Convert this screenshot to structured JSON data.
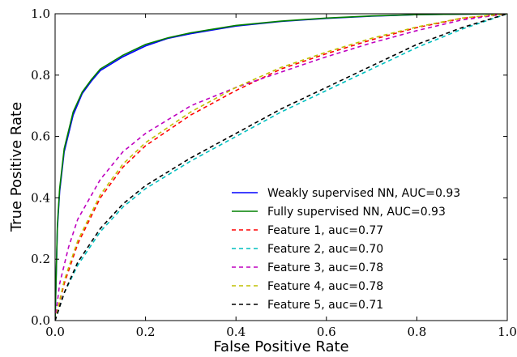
{
  "chart_data": {
    "type": "line",
    "title": "",
    "xlabel": "False Positive Rate",
    "ylabel": "True Positive Rate",
    "xlim": [
      0.0,
      1.0
    ],
    "ylim": [
      0.0,
      1.0
    ],
    "grid": false,
    "legend_position": "bottom-right",
    "x_ticks": [
      "0.0",
      "0.2",
      "0.4",
      "0.6",
      "0.8",
      "1.0"
    ],
    "y_ticks": [
      "0.0",
      "0.2",
      "0.4",
      "0.6",
      "0.8",
      "1.0"
    ],
    "series": [
      {
        "name": "Weakly supervised NN, AUC=0.93",
        "color": "#0000ff",
        "style": "solid",
        "x": [
          0,
          0.005,
          0.01,
          0.02,
          0.04,
          0.06,
          0.08,
          0.1,
          0.15,
          0.2,
          0.25,
          0.3,
          0.4,
          0.5,
          0.6,
          0.7,
          0.8,
          0.9,
          1.0
        ],
        "y": [
          0,
          0.3,
          0.42,
          0.55,
          0.67,
          0.74,
          0.78,
          0.815,
          0.86,
          0.895,
          0.92,
          0.935,
          0.96,
          0.975,
          0.985,
          0.992,
          0.997,
          0.999,
          1.0
        ]
      },
      {
        "name": "Fully supervised NN, AUC=0.93",
        "color": "#008000",
        "style": "solid",
        "x": [
          0,
          0.005,
          0.01,
          0.02,
          0.04,
          0.06,
          0.08,
          0.1,
          0.15,
          0.2,
          0.25,
          0.3,
          0.4,
          0.5,
          0.6,
          0.7,
          0.8,
          0.9,
          1.0
        ],
        "y": [
          0,
          0.31,
          0.43,
          0.56,
          0.68,
          0.745,
          0.785,
          0.82,
          0.865,
          0.9,
          0.922,
          0.938,
          0.962,
          0.976,
          0.986,
          0.993,
          0.997,
          0.999,
          1.0
        ]
      },
      {
        "name": "Feature 1, auc=0.77",
        "color": "#ff0000",
        "style": "dashed",
        "x": [
          0,
          0.02,
          0.05,
          0.1,
          0.15,
          0.2,
          0.3,
          0.4,
          0.5,
          0.6,
          0.7,
          0.8,
          0.9,
          1.0
        ],
        "y": [
          0,
          0.12,
          0.25,
          0.4,
          0.5,
          0.57,
          0.67,
          0.75,
          0.82,
          0.87,
          0.915,
          0.955,
          0.985,
          1.0
        ]
      },
      {
        "name": "Feature 2, auc=0.70",
        "color": "#00bfbf",
        "style": "dashed",
        "x": [
          0,
          0.02,
          0.05,
          0.1,
          0.15,
          0.2,
          0.3,
          0.4,
          0.5,
          0.6,
          0.7,
          0.8,
          0.9,
          1.0
        ],
        "y": [
          0,
          0.09,
          0.18,
          0.29,
          0.37,
          0.43,
          0.52,
          0.6,
          0.68,
          0.75,
          0.82,
          0.89,
          0.95,
          1.0
        ]
      },
      {
        "name": "Feature 3, auc=0.78",
        "color": "#bf00bf",
        "style": "dashed",
        "x": [
          0,
          0.01,
          0.03,
          0.05,
          0.1,
          0.15,
          0.2,
          0.3,
          0.4,
          0.5,
          0.6,
          0.7,
          0.8,
          0.9,
          1.0
        ],
        "y": [
          0,
          0.12,
          0.24,
          0.33,
          0.46,
          0.55,
          0.61,
          0.7,
          0.76,
          0.81,
          0.86,
          0.905,
          0.945,
          0.98,
          1.0
        ]
      },
      {
        "name": "Feature 4, auc=0.78",
        "color": "#bfbf00",
        "style": "dashed",
        "x": [
          0,
          0.02,
          0.05,
          0.1,
          0.15,
          0.2,
          0.3,
          0.4,
          0.5,
          0.6,
          0.7,
          0.8,
          0.9,
          1.0
        ],
        "y": [
          0,
          0.13,
          0.26,
          0.41,
          0.51,
          0.58,
          0.68,
          0.76,
          0.825,
          0.875,
          0.92,
          0.957,
          0.986,
          1.0
        ]
      },
      {
        "name": "Feature 5, auc=0.71",
        "color": "#000000",
        "style": "dashed",
        "x": [
          0,
          0.02,
          0.05,
          0.1,
          0.15,
          0.2,
          0.3,
          0.4,
          0.5,
          0.6,
          0.7,
          0.8,
          0.9,
          1.0
        ],
        "y": [
          0,
          0.09,
          0.19,
          0.3,
          0.38,
          0.44,
          0.53,
          0.61,
          0.69,
          0.76,
          0.83,
          0.9,
          0.955,
          1.0
        ]
      }
    ]
  }
}
